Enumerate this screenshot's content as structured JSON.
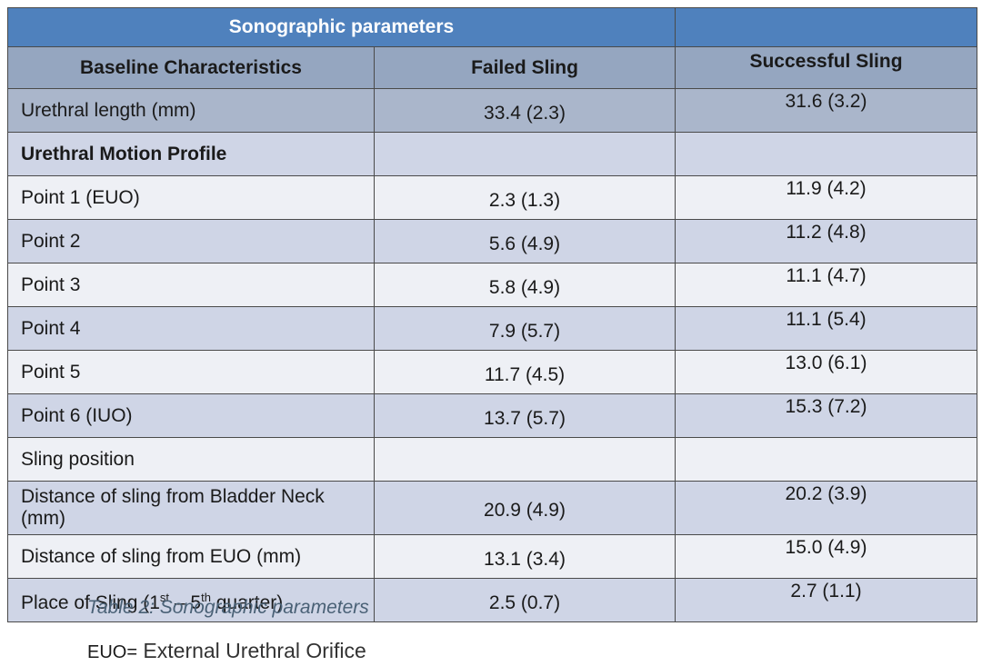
{
  "table": {
    "title": "Sonographic parameters",
    "headers": [
      "Baseline Characteristics",
      "Failed Sling",
      "Successful Sling"
    ],
    "rows": [
      {
        "label": "Urethral length (mm)",
        "failed": "33.4 (2.3)",
        "successful": "31.6 (3.2)"
      },
      {
        "label": "Urethral Motion Profile",
        "failed": "",
        "successful": ""
      },
      {
        "label": "Point 1 (EUO)",
        "failed": "2.3 (1.3)",
        "successful": "11.9 (4.2)"
      },
      {
        "label": "Point 2",
        "failed": "5.6 (4.9)",
        "successful": "11.2 (4.8)"
      },
      {
        "label": "Point 3",
        "failed": "5.8 (4.9)",
        "successful": "11.1 (4.7)"
      },
      {
        "label": "Point 4",
        "failed": "7.9 (5.7)",
        "successful": "11.1 (5.4)"
      },
      {
        "label": "Point 5",
        "failed": "11.7 (4.5)",
        "successful": "13.0 (6.1)"
      },
      {
        "label": "Point 6 (IUO)",
        "failed": "13.7 (5.7)",
        "successful": "15.3 (7.2)"
      },
      {
        "label": "Sling position",
        "failed": "",
        "successful": ""
      },
      {
        "label": "Distance of sling from Bladder Neck (mm)",
        "failed": "20.9 (4.9)",
        "successful": "20.2 (3.9)"
      },
      {
        "label": "Distance of sling from EUO (mm)",
        "failed": "13.1 (3.4)",
        "successful": "15.0 (4.9)"
      },
      {
        "label_pre": "Place of Sling (1",
        "label_sup1": "st",
        "label_mid": " – 5",
        "label_sup2": "th",
        "label_post": " quarter)",
        "failed": "2.5 (0.7)",
        "successful": "2.7 (1.1)"
      }
    ]
  },
  "caption": "Table 2: Sonographic parameters",
  "note": {
    "abbr": "EUO=",
    "definition": " External Urethral Orifice"
  },
  "colors": {
    "title_bg": "#4f81bd",
    "header_bg": "#95a6c0",
    "row_dark": "#cfd5e6",
    "row_light": "#eef0f5",
    "caption": "#4a6176"
  }
}
